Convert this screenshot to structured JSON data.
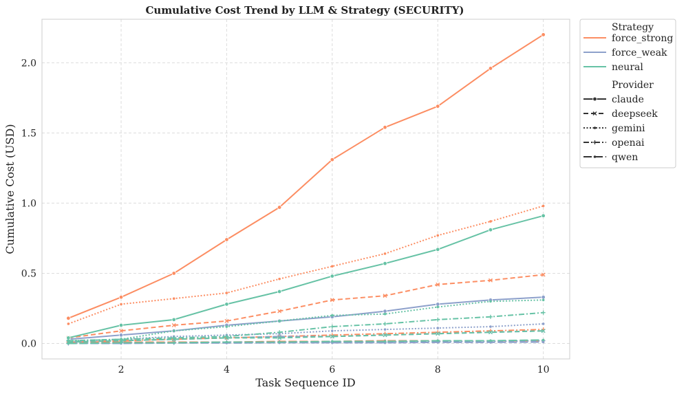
{
  "chart_data": {
    "type": "line",
    "title": "Cumulative Cost Trend by LLM & Strategy (SECURITY)",
    "xlabel": "Task Sequence ID",
    "ylabel": "Cumulative Cost (USD)",
    "xlim": [
      0.5,
      10.5
    ],
    "ylim": [
      -0.11,
      2.31
    ],
    "xticks": [
      2,
      4,
      6,
      8,
      10
    ],
    "yticks": [
      0.0,
      0.5,
      1.0,
      1.5,
      2.0
    ],
    "ytick_labels": [
      "0.0",
      "0.5",
      "1.0",
      "1.5",
      "2.0"
    ],
    "grid": true,
    "legend": {
      "placement": "outside-top-right",
      "strategy_title": "Strategy",
      "provider_title": "Provider",
      "strategies": [
        {
          "name": "force_strong",
          "color": "#fc8d62"
        },
        {
          "name": "force_weak",
          "color": "#8da0cb"
        },
        {
          "name": "neural",
          "color": "#66c2a5"
        }
      ],
      "providers": [
        {
          "name": "claude",
          "dash": "solid",
          "marker": "circle"
        },
        {
          "name": "deepseek",
          "dash": "dashed",
          "marker": "x"
        },
        {
          "name": "gemini",
          "dash": "dotted",
          "marker": "dot"
        },
        {
          "name": "openai",
          "dash": "dashdot",
          "marker": "plus"
        },
        {
          "name": "qwen",
          "dash": "longdash",
          "marker": "dot"
        }
      ]
    },
    "x": [
      1,
      2,
      3,
      4,
      5,
      6,
      7,
      8,
      9,
      10
    ],
    "series": [
      {
        "strategy": "force_strong",
        "provider": "claude",
        "values": [
          0.18,
          0.33,
          0.5,
          0.74,
          0.97,
          1.31,
          1.54,
          1.69,
          1.96,
          2.2
        ]
      },
      {
        "strategy": "force_strong",
        "provider": "gemini",
        "values": [
          0.14,
          0.28,
          0.32,
          0.36,
          0.46,
          0.55,
          0.64,
          0.77,
          0.87,
          0.98
        ]
      },
      {
        "strategy": "force_strong",
        "provider": "deepseek",
        "values": [
          0.04,
          0.09,
          0.13,
          0.16,
          0.23,
          0.31,
          0.34,
          0.42,
          0.45,
          0.49
        ]
      },
      {
        "strategy": "force_strong",
        "provider": "openai",
        "values": [
          0.01,
          0.02,
          0.03,
          0.04,
          0.05,
          0.06,
          0.07,
          0.08,
          0.09,
          0.1
        ]
      },
      {
        "strategy": "force_strong",
        "provider": "qwen",
        "values": [
          0.01,
          0.01,
          0.01,
          0.01,
          0.015,
          0.015,
          0.02,
          0.02,
          0.02,
          0.02
        ]
      },
      {
        "strategy": "force_weak",
        "provider": "claude",
        "values": [
          0.03,
          0.06,
          0.09,
          0.13,
          0.16,
          0.19,
          0.23,
          0.28,
          0.31,
          0.33
        ]
      },
      {
        "strategy": "force_weak",
        "provider": "gemini",
        "values": [
          0.01,
          0.03,
          0.05,
          0.06,
          0.07,
          0.09,
          0.1,
          0.11,
          0.12,
          0.14
        ]
      },
      {
        "strategy": "force_weak",
        "provider": "deepseek",
        "values": [
          0.01,
          0.02,
          0.03,
          0.04,
          0.05,
          0.05,
          0.06,
          0.07,
          0.08,
          0.09
        ]
      },
      {
        "strategy": "force_weak",
        "provider": "openai",
        "values": [
          0.0,
          0.005,
          0.005,
          0.01,
          0.01,
          0.01,
          0.01,
          0.015,
          0.015,
          0.02
        ]
      },
      {
        "strategy": "force_weak",
        "provider": "qwen",
        "values": [
          0.0,
          0.0,
          0.003,
          0.003,
          0.005,
          0.005,
          0.005,
          0.008,
          0.008,
          0.01
        ]
      },
      {
        "strategy": "neural",
        "provider": "claude",
        "values": [
          0.04,
          0.13,
          0.17,
          0.28,
          0.37,
          0.48,
          0.57,
          0.67,
          0.81,
          0.91
        ]
      },
      {
        "strategy": "neural",
        "provider": "gemini",
        "values": [
          0.02,
          0.03,
          0.09,
          0.12,
          0.16,
          0.2,
          0.21,
          0.26,
          0.3,
          0.31
        ]
      },
      {
        "strategy": "neural",
        "provider": "openai",
        "values": [
          0.02,
          0.03,
          0.04,
          0.05,
          0.08,
          0.12,
          0.14,
          0.17,
          0.19,
          0.22
        ]
      },
      {
        "strategy": "neural",
        "provider": "deepseek",
        "values": [
          0.01,
          0.02,
          0.03,
          0.04,
          0.04,
          0.05,
          0.06,
          0.07,
          0.08,
          0.09
        ]
      },
      {
        "strategy": "neural",
        "provider": "qwen",
        "values": [
          0.0,
          0.005,
          0.005,
          0.01,
          0.01,
          0.015,
          0.015,
          0.02,
          0.02,
          0.025
        ]
      }
    ]
  }
}
